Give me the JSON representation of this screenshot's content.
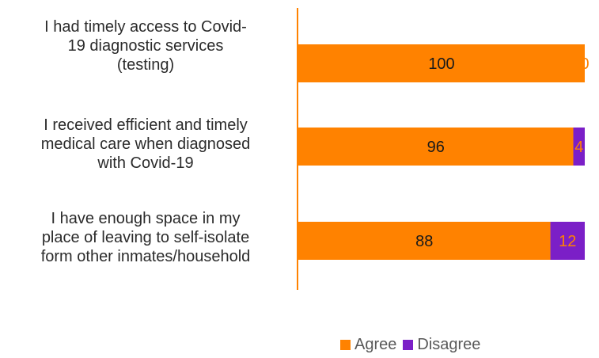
{
  "chart_data": {
    "type": "bar",
    "orientation": "horizontal",
    "stacked": true,
    "categories": [
      "I had timely access to Covid-19 diagnostic services (testing)",
      "I received efficient and timely medical care when diagnosed with Covid-19",
      "I have enough space in my place of leaving to self-isolate form other inmates/household"
    ],
    "category_lines": [
      [
        "I had timely access to Covid-",
        "19 diagnostic services",
        "(testing)"
      ],
      [
        "I received efficient and timely",
        "medical care when diagnosed",
        "with Covid-19"
      ],
      [
        "I have enough space in my",
        "place of leaving to self-isolate",
        "form other inmates/household"
      ]
    ],
    "series": [
      {
        "name": "Agree",
        "values": [
          100,
          96,
          88
        ],
        "color": "#FF8200",
        "label_color": "#1a1a1a"
      },
      {
        "name": "Disagree",
        "values": [
          0,
          4,
          12
        ],
        "color": "#7B1FC7",
        "label_color": "#FF8200"
      }
    ],
    "xlim": [
      0,
      100
    ],
    "grid": false,
    "legend_position": "bottom",
    "axis_color": "#FF8200"
  }
}
